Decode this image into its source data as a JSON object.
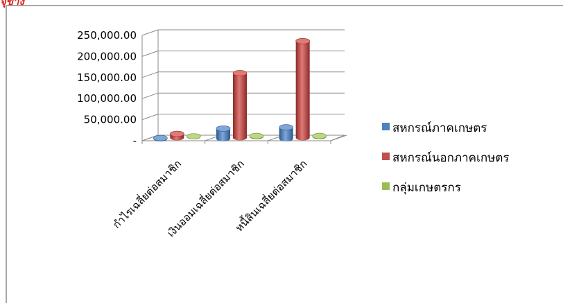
{
  "header": {
    "corner_text": "จุข้าง"
  },
  "chart_data": {
    "type": "bar",
    "title": "",
    "xlabel": "",
    "ylabel": "",
    "ylim": [
      0,
      250000
    ],
    "y_ticks": [
      0,
      50000,
      100000,
      150000,
      200000,
      250000
    ],
    "y_tick_labels": [
      "-",
      "50,000.00",
      "100,000.00",
      "150,000.00",
      "200,000.00",
      "250,000.00"
    ],
    "categories": [
      "กำไรเฉลี่ยต่อสมาชิก",
      "เงินออมเฉลี่ยต่อสมาชิก",
      "หนี้สินเฉลี่ยต่อสมาชิก"
    ],
    "series": [
      {
        "name": "สหกรณ์ภาคเกษตร",
        "values": [
          1500,
          24000,
          27000
        ],
        "color": "#4f81bd",
        "color_dark": "#2c5a8f",
        "color_light": "#7fa6d6"
      },
      {
        "name": "สหกรณ์นอกภาคเกษตร",
        "values": [
          9000,
          153000,
          229000
        ],
        "color": "#c0504d",
        "color_dark": "#8c2a28",
        "color_light": "#e07a77"
      },
      {
        "name": "กลุ่มเกษตรกร",
        "values": [
          600,
          1500,
          1500
        ],
        "color": "#9bbb59",
        "color_dark": "#6d8c34",
        "color_light": "#bcd686"
      }
    ],
    "grid": true,
    "legend_position": "right",
    "style": "3d-clustered-column"
  }
}
